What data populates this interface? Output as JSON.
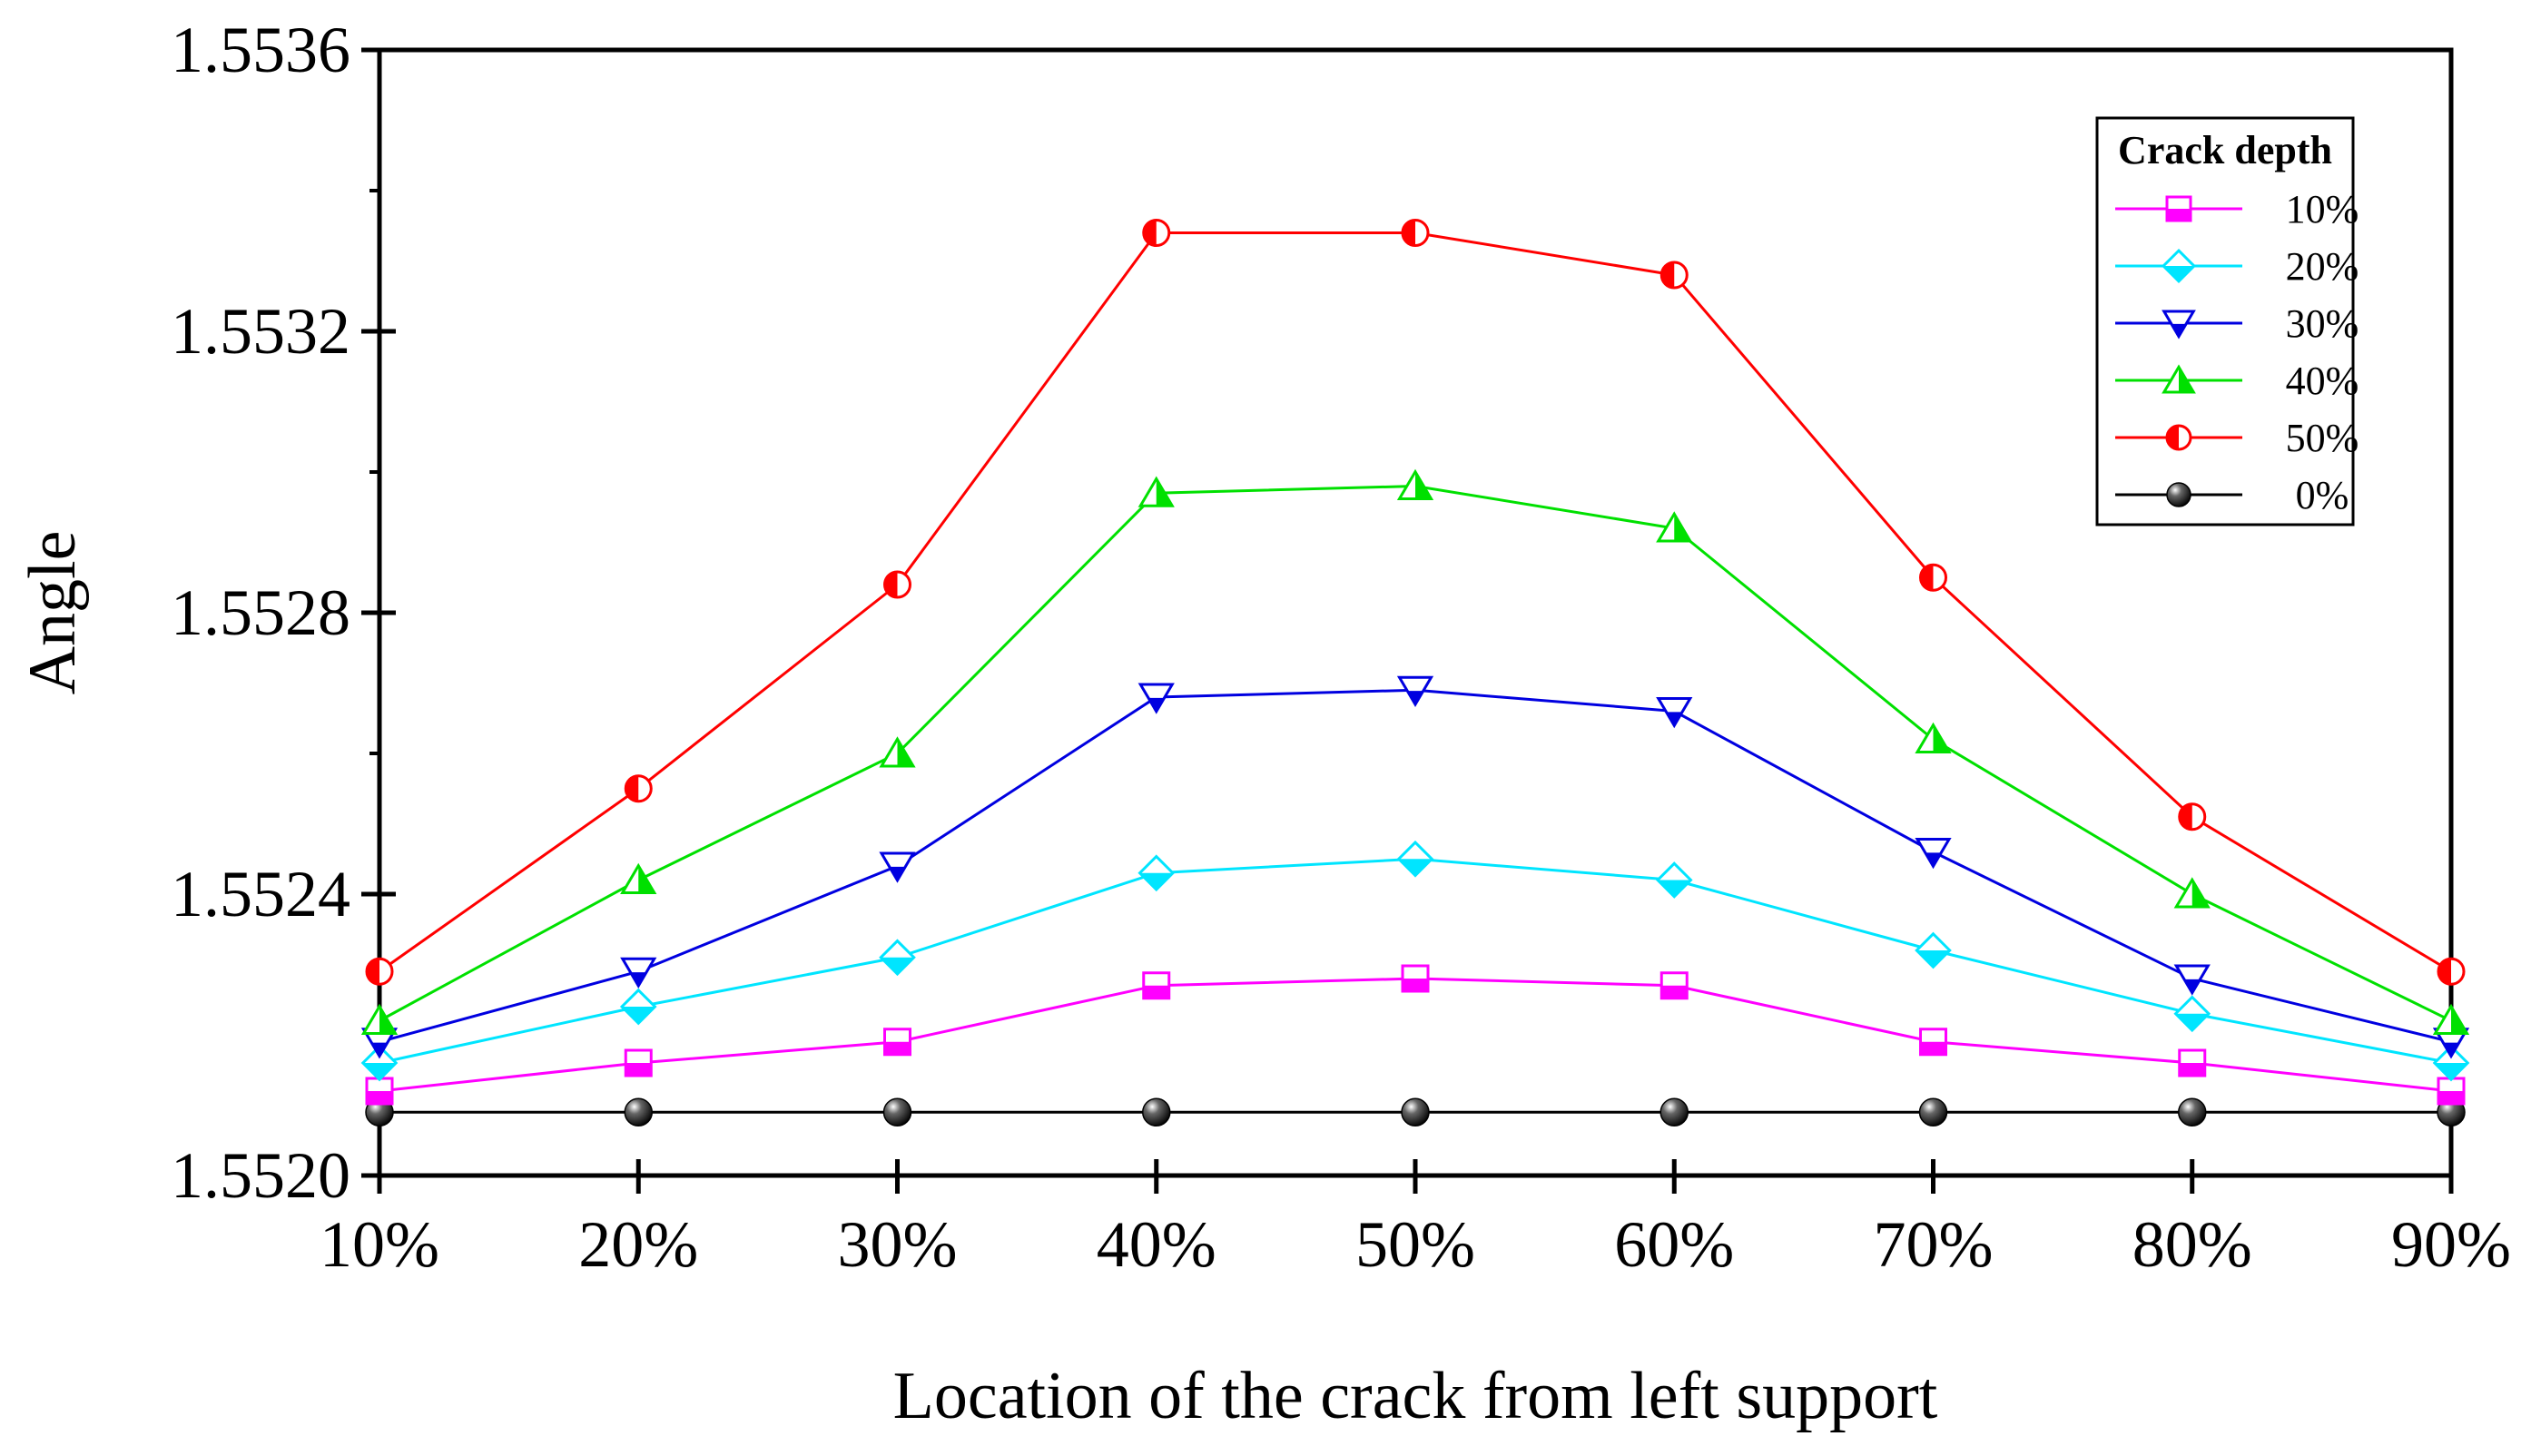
{
  "chart_data": {
    "type": "line",
    "title": "",
    "xlabel": "Location of the crack from left support",
    "ylabel": "Angle",
    "categories": [
      "10%",
      "20%",
      "30%",
      "40%",
      "50%",
      "60%",
      "70%",
      "80%",
      "90%"
    ],
    "ylim": [
      1.552,
      1.5536
    ],
    "yticks": [
      1.552,
      1.5524,
      1.5528,
      1.5532,
      1.5536
    ],
    "ytick_labels": [
      "1.5520",
      "1.5524",
      "1.5528",
      "1.5532",
      "1.5536"
    ],
    "grid": false,
    "legend": {
      "title": "Crack depth",
      "position": "top-right"
    },
    "series": [
      {
        "name": "10%",
        "color": "#ff00ff",
        "marker": "square-half",
        "values": [
          1.55212,
          1.55216,
          1.55219,
          1.55227,
          1.55228,
          1.55227,
          1.55219,
          1.55216,
          1.55212
        ]
      },
      {
        "name": "20%",
        "color": "#00e5ff",
        "marker": "diamond-half",
        "values": [
          1.55216,
          1.55224,
          1.55231,
          1.55243,
          1.55245,
          1.55242,
          1.55232,
          1.55223,
          1.55216
        ]
      },
      {
        "name": "30%",
        "color": "#0000e0",
        "marker": "triangle-down-half",
        "values": [
          1.55219,
          1.55229,
          1.55244,
          1.55268,
          1.55269,
          1.55266,
          1.55246,
          1.55228,
          1.55219
        ]
      },
      {
        "name": "40%",
        "color": "#00e000",
        "marker": "triangle-up-half",
        "values": [
          1.55222,
          1.55242,
          1.5526,
          1.55297,
          1.55298,
          1.55292,
          1.55262,
          1.5524,
          1.55222
        ]
      },
      {
        "name": "50%",
        "color": "#ff0000",
        "marker": "circle-half",
        "values": [
          1.55229,
          1.55255,
          1.55284,
          1.55334,
          1.55334,
          1.55328,
          1.55285,
          1.55251,
          1.55229
        ]
      },
      {
        "name": "0%",
        "color": "#000000",
        "marker": "sphere",
        "values": [
          1.55209,
          1.55209,
          1.55209,
          1.55209,
          1.55209,
          1.55209,
          1.55209,
          1.55209,
          1.55209
        ]
      }
    ]
  }
}
